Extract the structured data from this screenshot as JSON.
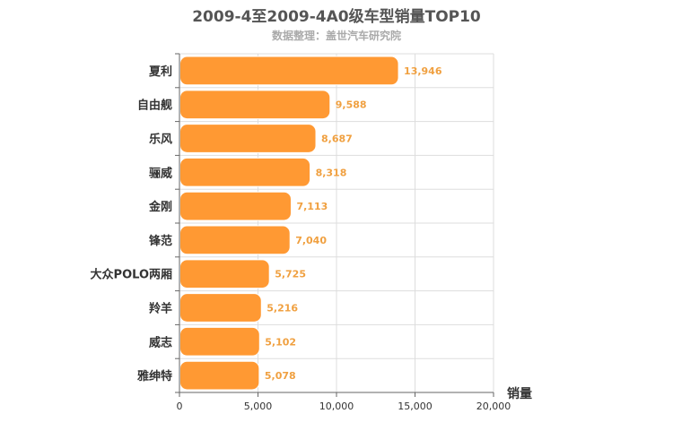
{
  "chart_data": {
    "type": "bar",
    "orientation": "horizontal",
    "title": "2009-4至2009-4A0级车型销量TOP10",
    "subtitle": "数据整理：盖世汽车研究院",
    "xlabel": "销量",
    "ylabel": "",
    "categories": [
      "夏利",
      "自由舰",
      "乐风",
      "骊威",
      "金刚",
      "锋范",
      "大众POLO两厢",
      "羚羊",
      "威志",
      "雅绅特"
    ],
    "values": [
      13946,
      9588,
      8687,
      8318,
      7113,
      7040,
      5725,
      5216,
      5102,
      5078
    ],
    "value_labels": [
      "13,946",
      "9,588",
      "8,687",
      "8,318",
      "7,113",
      "7,040",
      "5,725",
      "5,216",
      "5,102",
      "5,078"
    ],
    "x_ticks": [
      0,
      5000,
      10000,
      15000,
      20000
    ],
    "x_tick_labels": [
      "0",
      "5,000",
      "10,000",
      "15,000",
      "20,000"
    ],
    "xlim": [
      0,
      20000
    ],
    "grid": true,
    "legend": "none",
    "colors": {
      "bar": "#ff9933",
      "bar_stroke": "#ffffff",
      "value_label": "#f0a040",
      "grid": "#dddddd",
      "axis": "#666666",
      "category_label": "#333333",
      "tick_label": "#333333"
    }
  }
}
